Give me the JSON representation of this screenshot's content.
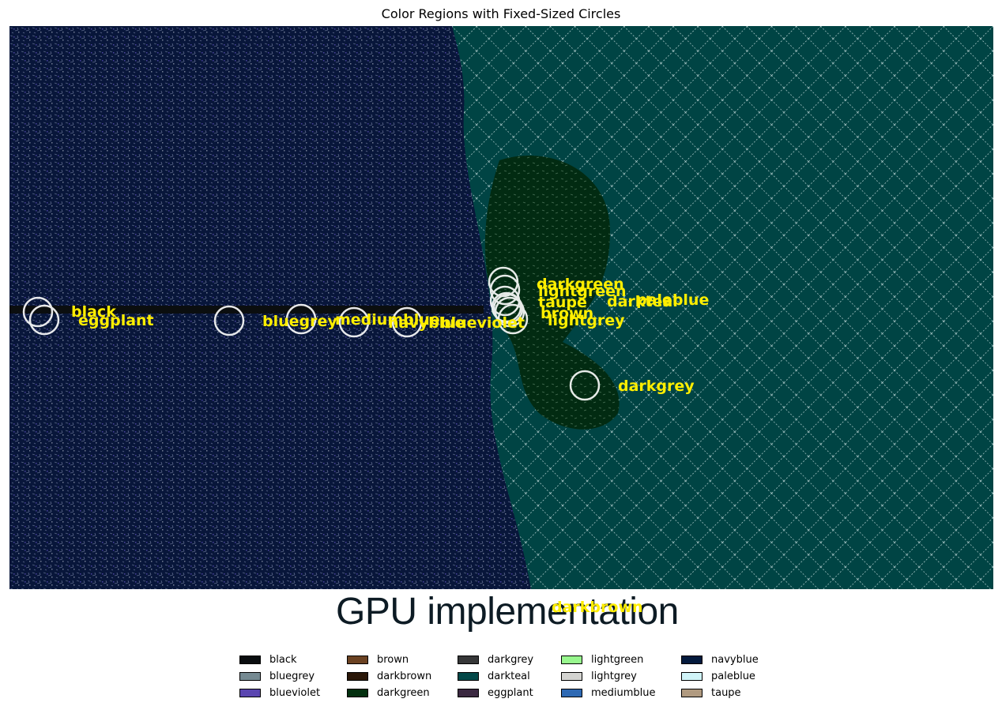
{
  "title": "Color Regions with Fixed-Sized Circles",
  "caption_text": "GPU implementation",
  "colors": {
    "navy_bg": "#08163a",
    "teal_bg": "#004444",
    "darkgreen_blob": "#022b12",
    "label_yellow": "#ffee00",
    "circle_white": "#ffffff"
  },
  "circle_labels": [
    {
      "name": "black",
      "label": "black"
    },
    {
      "name": "eggplant",
      "label": "eggplant"
    },
    {
      "name": "bluegrey",
      "label": "bluegrey"
    },
    {
      "name": "mediumblue",
      "label": "mediumblue"
    },
    {
      "name": "navyblue",
      "label": "navyblue"
    },
    {
      "name": "blueviolet",
      "label": "blueviolet"
    },
    {
      "name": "darkgreen",
      "label": "darkgreen"
    },
    {
      "name": "lightgreen",
      "label": "lightgreen"
    },
    {
      "name": "taupe",
      "label": "taupe"
    },
    {
      "name": "darkteal",
      "label": "darkteal"
    },
    {
      "name": "paleblue",
      "label": "paleblue"
    },
    {
      "name": "brown",
      "label": "brown"
    },
    {
      "name": "lightgrey",
      "label": "lightgrey"
    },
    {
      "name": "darkgrey",
      "label": "darkgrey"
    },
    {
      "name": "darkbrown",
      "label": "darkbrown"
    }
  ],
  "legend": [
    {
      "label": "black",
      "color": "#0a0d0f"
    },
    {
      "label": "bluegrey",
      "color": "#758a92"
    },
    {
      "label": "blueviolet",
      "color": "#5a45b0"
    },
    {
      "label": "brown",
      "color": "#6b4222"
    },
    {
      "label": "darkbrown",
      "color": "#2a1708"
    },
    {
      "label": "darkgreen",
      "color": "#03300f"
    },
    {
      "label": "darkgrey",
      "color": "#363738"
    },
    {
      "label": "darkteal",
      "color": "#024848"
    },
    {
      "label": "eggplant",
      "color": "#3a2840"
    },
    {
      "label": "lightgreen",
      "color": "#98f78e"
    },
    {
      "label": "lightgrey",
      "color": "#d3d3d0"
    },
    {
      "label": "mediumblue",
      "color": "#2e69b3"
    },
    {
      "label": "navyblue",
      "color": "#041a3d"
    },
    {
      "label": "paleblue",
      "color": "#d0f4f8"
    },
    {
      "label": "taupe",
      "color": "#b09a80"
    }
  ]
}
